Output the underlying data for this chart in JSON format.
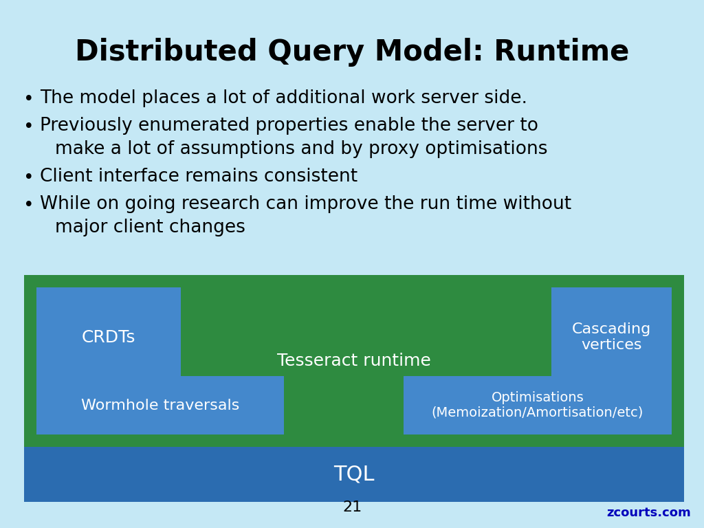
{
  "title": "Distributed Query Model: Runtime",
  "title_fontsize": 30,
  "title_color": "#000000",
  "title_fontweight": "bold",
  "background_color": "#c5e8f5",
  "bullet_lines": [
    [
      "The model places a lot of additional work server side."
    ],
    [
      "Previously enumerated properties enable the server to",
      "make a lot of assumptions and by proxy optimisations"
    ],
    [
      "Client interface remains consistent"
    ],
    [
      "While on going research can improve the run time without",
      "major client changes"
    ]
  ],
  "bullet_fontsize": 19,
  "bullet_color": "#000000",
  "diagram_bg": "#2e8b40",
  "tql_bg": "#2b6cb0",
  "box_blue": "#4488cc",
  "box_white_text": "#ffffff",
  "crdt_label": "CRDTs",
  "cascading_label": "Cascading\nvertices",
  "tesseract_label": "Tesseract runtime",
  "wormhole_label": "Wormhole traversals",
  "optimisations_label": "Optimisations\n(Memoization/Amortisation/etc)",
  "tql_label": "TQL",
  "page_number": "21",
  "footer_text": "zcourts.com",
  "footer_color": "#0000bb"
}
